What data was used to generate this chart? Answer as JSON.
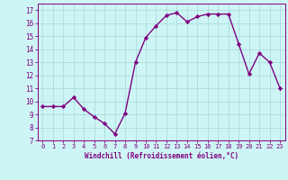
{
  "x": [
    0,
    1,
    2,
    3,
    4,
    5,
    6,
    7,
    8,
    9,
    10,
    11,
    12,
    13,
    14,
    15,
    16,
    17,
    18,
    19,
    20,
    21,
    22,
    23
  ],
  "y": [
    9.6,
    9.6,
    9.6,
    10.3,
    9.4,
    8.8,
    8.3,
    7.5,
    9.1,
    13.0,
    14.9,
    15.8,
    16.6,
    16.8,
    16.1,
    16.5,
    16.7,
    16.7,
    16.7,
    14.4,
    12.1,
    13.7,
    13.0,
    11.0
  ],
  "line_color": "#800080",
  "marker": "D",
  "markersize": 2.2,
  "linewidth": 1.0,
  "bg_color": "#cef5f5",
  "grid_color": "#aadddd",
  "xlabel": "Windchill (Refroidissement éolien,°C)",
  "tick_color": "#800080",
  "xlim": [
    -0.5,
    23.5
  ],
  "ylim": [
    7,
    17.5
  ],
  "yticks": [
    7,
    8,
    9,
    10,
    11,
    12,
    13,
    14,
    15,
    16,
    17
  ],
  "xticks": [
    0,
    1,
    2,
    3,
    4,
    5,
    6,
    7,
    8,
    9,
    10,
    11,
    12,
    13,
    14,
    15,
    16,
    17,
    18,
    19,
    20,
    21,
    22,
    23
  ]
}
